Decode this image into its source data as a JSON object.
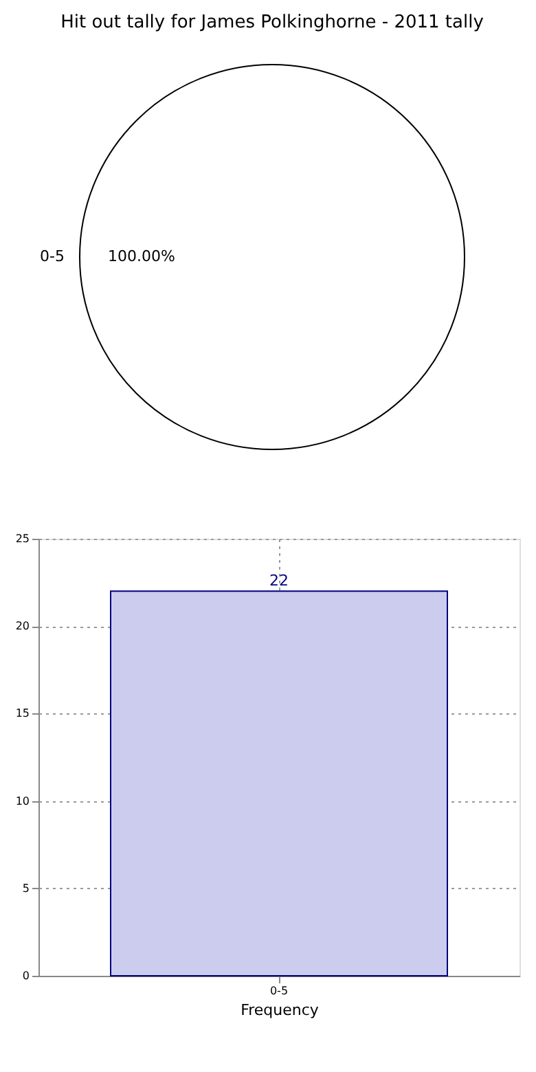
{
  "chart_data": [
    {
      "type": "pie",
      "title": "Hit out tally for James Polkinghorne - 2011 tally",
      "categories": [
        "0-5"
      ],
      "values": [
        100
      ],
      "colors": [
        "#ffffff"
      ],
      "value_labels": [
        "100.00%"
      ]
    },
    {
      "type": "bar",
      "categories": [
        "0-5"
      ],
      "values": [
        22
      ],
      "color": "#ccccee",
      "xlabel": "Frequency",
      "ylim": [
        0,
        25
      ],
      "yticks": [
        0,
        5,
        10,
        15,
        20,
        25
      ],
      "grid": true,
      "data_labels": true
    }
  ]
}
